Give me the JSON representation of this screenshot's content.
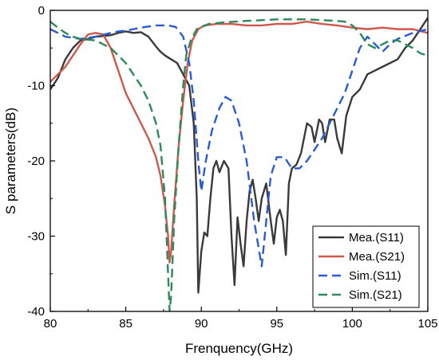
{
  "chart_data": {
    "type": "line",
    "title": "",
    "xlabel": "Frenquency(GHz)",
    "ylabel": "S parameters(dB)",
    "xlim": [
      80,
      105
    ],
    "ylim": [
      -40,
      0
    ],
    "xticks": [
      80,
      85,
      90,
      95,
      100,
      105
    ],
    "yticks": [
      0,
      -10,
      -20,
      -30,
      -40
    ],
    "legend_position": "bottom-right",
    "series": [
      {
        "name": "Mea.(S11)",
        "color": "#3a3a3a",
        "dash": "solid",
        "points": [
          [
            80,
            -10.5
          ],
          [
            80.5,
            -9
          ],
          [
            81,
            -6.5
          ],
          [
            81.5,
            -5
          ],
          [
            82,
            -4
          ],
          [
            82.5,
            -3.8
          ],
          [
            83,
            -3.5
          ],
          [
            83.5,
            -3.4
          ],
          [
            84,
            -3.3
          ],
          [
            84.5,
            -3.0
          ],
          [
            85,
            -2.8
          ],
          [
            85.5,
            -3
          ],
          [
            86,
            -2.9
          ],
          [
            86.5,
            -3.5
          ],
          [
            87,
            -4.8
          ],
          [
            87.3,
            -5.5
          ],
          [
            87.6,
            -6
          ],
          [
            88,
            -6.5
          ],
          [
            88.4,
            -7
          ],
          [
            88.8,
            -8.5
          ],
          [
            89.2,
            -10
          ],
          [
            89.5,
            -15
          ],
          [
            89.7,
            -25
          ],
          [
            89.8,
            -37.5
          ],
          [
            90.0,
            -32
          ],
          [
            90.2,
            -29.5
          ],
          [
            90.4,
            -30
          ],
          [
            90.6,
            -25
          ],
          [
            90.8,
            -21
          ],
          [
            91.0,
            -20
          ],
          [
            91.2,
            -21.5
          ],
          [
            91.5,
            -20
          ],
          [
            91.8,
            -21
          ],
          [
            92.0,
            -30
          ],
          [
            92.2,
            -36.5
          ],
          [
            92.4,
            -27.5
          ],
          [
            92.6,
            -31
          ],
          [
            92.8,
            -34
          ],
          [
            93.0,
            -28
          ],
          [
            93.2,
            -24
          ],
          [
            93.4,
            -22.5
          ],
          [
            93.6,
            -25
          ],
          [
            93.8,
            -28
          ],
          [
            94.0,
            -25
          ],
          [
            94.3,
            -23
          ],
          [
            94.6,
            -28
          ],
          [
            94.8,
            -31
          ],
          [
            95.0,
            -27.5
          ],
          [
            95.2,
            -26.5
          ],
          [
            95.4,
            -28
          ],
          [
            95.6,
            -32.5
          ],
          [
            95.8,
            -23
          ],
          [
            96.0,
            -21
          ],
          [
            96.3,
            -20.5
          ],
          [
            96.6,
            -19
          ],
          [
            97.0,
            -15
          ],
          [
            97.3,
            -15.5
          ],
          [
            97.5,
            -17.5
          ],
          [
            97.8,
            -14.5
          ],
          [
            98.0,
            -15
          ],
          [
            98.2,
            -17.5
          ],
          [
            98.5,
            -14.5
          ],
          [
            98.8,
            -14.5
          ],
          [
            99.0,
            -17
          ],
          [
            99.3,
            -19
          ],
          [
            99.6,
            -14
          ],
          [
            100.0,
            -11.5
          ],
          [
            100.5,
            -10.5
          ],
          [
            101.0,
            -8.5
          ],
          [
            101.5,
            -8
          ],
          [
            102.0,
            -7.5
          ],
          [
            103.0,
            -6.5
          ],
          [
            103.5,
            -5
          ],
          [
            104.0,
            -4
          ],
          [
            104.5,
            -2.5
          ],
          [
            105.0,
            -1
          ]
        ]
      },
      {
        "name": "Mea.(S21)",
        "color": "#d0574c",
        "dash": "solid",
        "points": [
          [
            80,
            -9.5
          ],
          [
            80.5,
            -8.5
          ],
          [
            81,
            -7.5
          ],
          [
            81.5,
            -6
          ],
          [
            82,
            -4.5
          ],
          [
            82.5,
            -3.2
          ],
          [
            83,
            -3.0
          ],
          [
            83.5,
            -3.2
          ],
          [
            84,
            -5
          ],
          [
            84.5,
            -8
          ],
          [
            85,
            -11
          ],
          [
            85.5,
            -13
          ],
          [
            86,
            -15
          ],
          [
            86.5,
            -17
          ],
          [
            87,
            -19.5
          ],
          [
            87.3,
            -22
          ],
          [
            87.6,
            -26
          ],
          [
            87.8,
            -30
          ],
          [
            87.9,
            -33.5
          ],
          [
            88.0,
            -32
          ],
          [
            88.2,
            -26
          ],
          [
            88.5,
            -18
          ],
          [
            88.8,
            -12
          ],
          [
            89.1,
            -7
          ],
          [
            89.4,
            -4
          ],
          [
            89.8,
            -2.5
          ],
          [
            90.2,
            -2.0
          ],
          [
            91,
            -1.8
          ],
          [
            92,
            -1.8
          ],
          [
            93,
            -2.0
          ],
          [
            94,
            -2.0
          ],
          [
            95,
            -1.8
          ],
          [
            96,
            -1.8
          ],
          [
            97,
            -1.5
          ],
          [
            98,
            -1.8
          ],
          [
            99,
            -2.0
          ],
          [
            100,
            -2.3
          ],
          [
            101,
            -2.5
          ],
          [
            102,
            -2.3
          ],
          [
            103,
            -2.5
          ],
          [
            104,
            -2.5
          ],
          [
            105,
            -3.0
          ]
        ]
      },
      {
        "name": "Sim.(S11)",
        "color": "#2a5bd7",
        "dash": "dashed",
        "points": [
          [
            80,
            -2.5
          ],
          [
            80.5,
            -3
          ],
          [
            81,
            -3.5
          ],
          [
            82,
            -3.8
          ],
          [
            83,
            -3.5
          ],
          [
            84,
            -3.0
          ],
          [
            84.5,
            -2.8
          ],
          [
            85,
            -2.7
          ],
          [
            86,
            -2.3
          ],
          [
            87,
            -2
          ],
          [
            87.8,
            -2
          ],
          [
            88.3,
            -2.2
          ],
          [
            88.8,
            -3.5
          ],
          [
            89.2,
            -7
          ],
          [
            89.5,
            -12
          ],
          [
            89.8,
            -20
          ],
          [
            90.0,
            -24
          ],
          [
            90.3,
            -20
          ],
          [
            90.7,
            -16
          ],
          [
            91.2,
            -13
          ],
          [
            91.6,
            -11.5
          ],
          [
            92.0,
            -12
          ],
          [
            92.5,
            -15
          ],
          [
            93.0,
            -20
          ],
          [
            93.5,
            -28
          ],
          [
            94.0,
            -34
          ],
          [
            94.3,
            -28
          ],
          [
            94.6,
            -22
          ],
          [
            95.0,
            -19.5
          ],
          [
            95.5,
            -19.5
          ],
          [
            96.0,
            -21
          ],
          [
            96.5,
            -21
          ],
          [
            97.0,
            -20
          ],
          [
            98.0,
            -17
          ],
          [
            99.0,
            -13
          ],
          [
            99.5,
            -11
          ],
          [
            100.0,
            -8
          ],
          [
            100.5,
            -5
          ],
          [
            101.0,
            -3.5
          ],
          [
            101.5,
            -4.5
          ],
          [
            102.0,
            -5.5
          ],
          [
            102.5,
            -4.5
          ],
          [
            103.0,
            -3.8
          ],
          [
            104.0,
            -3.0
          ],
          [
            105.0,
            -2.5
          ]
        ]
      },
      {
        "name": "Sim.(S21)",
        "color": "#2d8a5a",
        "dash": "dashed",
        "points": [
          [
            80,
            -1.5
          ],
          [
            80.5,
            -2.3
          ],
          [
            81,
            -3
          ],
          [
            81.5,
            -3.5
          ],
          [
            82,
            -3.8
          ],
          [
            83,
            -4
          ],
          [
            84,
            -5
          ],
          [
            84.5,
            -6
          ],
          [
            85,
            -7
          ],
          [
            85.5,
            -8.5
          ],
          [
            86,
            -10
          ],
          [
            86.5,
            -12
          ],
          [
            87,
            -15
          ],
          [
            87.3,
            -18
          ],
          [
            87.6,
            -25
          ],
          [
            87.8,
            -35
          ],
          [
            87.9,
            -40
          ],
          [
            88.0,
            -38
          ],
          [
            88.2,
            -28
          ],
          [
            88.5,
            -18
          ],
          [
            88.8,
            -10
          ],
          [
            89.0,
            -6
          ],
          [
            89.3,
            -4
          ],
          [
            89.7,
            -2.5
          ],
          [
            90.5,
            -1.8
          ],
          [
            91.5,
            -1.6
          ],
          [
            93,
            -1.4
          ],
          [
            94,
            -1.3
          ],
          [
            95,
            -1.2
          ],
          [
            96,
            -1.2
          ],
          [
            97,
            -1.2
          ],
          [
            98,
            -1.3
          ],
          [
            99,
            -1.4
          ],
          [
            99.5,
            -1.5
          ],
          [
            100,
            -2
          ],
          [
            100.5,
            -3
          ],
          [
            101,
            -4.5
          ],
          [
            101.5,
            -5
          ],
          [
            102,
            -4.5
          ],
          [
            102.5,
            -4
          ],
          [
            103,
            -4
          ],
          [
            103.5,
            -4.5
          ],
          [
            104,
            -5
          ],
          [
            104.5,
            -5.7
          ],
          [
            105,
            -6
          ]
        ]
      }
    ]
  }
}
